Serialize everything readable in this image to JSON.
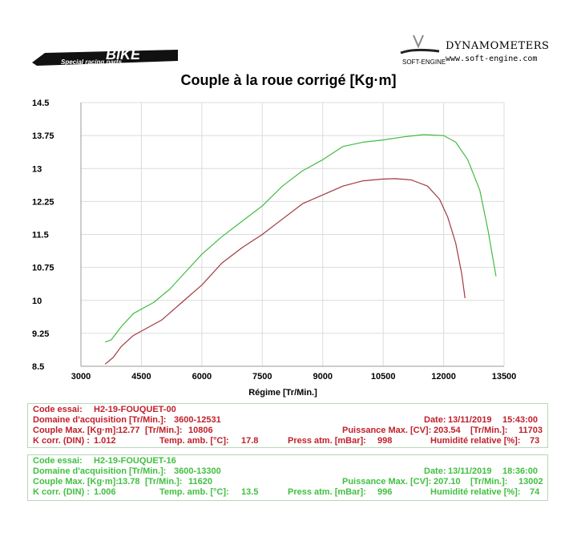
{
  "logos": {
    "left_text": "BIKE",
    "left_subtext": "Special racing parts",
    "right_brand": "DYNAMOMETERS",
    "right_mark": "SOFT-ENGINE",
    "right_url": "www.soft-engine.com"
  },
  "chart_data": {
    "type": "line",
    "title": "Couple à la roue corrigé [Kg·m]",
    "xlabel": "Régime [Tr/Min.]",
    "ylabel": "",
    "xlim": [
      3000,
      13500
    ],
    "ylim": [
      8.5,
      14.5
    ],
    "xticks": [
      "3000",
      "4500",
      "6000",
      "7500",
      "9000",
      "10500",
      "12000",
      "13500"
    ],
    "yticks": [
      "8.5",
      "9.25",
      "10",
      "10.75",
      "11.5",
      "12.25",
      "13",
      "13.75",
      "14.5"
    ],
    "grid": true,
    "series": [
      {
        "color": "#44bb44",
        "x": [
          3600,
          3750,
          4000,
          4300,
          4500,
          4800,
          5200,
          5600,
          6000,
          6500,
          7000,
          7500,
          8000,
          8500,
          9000,
          9500,
          10000,
          10500,
          11000,
          11500,
          12000,
          12300,
          12600,
          12900,
          13100,
          13300
        ],
        "y": [
          9.05,
          9.1,
          9.4,
          9.7,
          9.8,
          9.95,
          10.25,
          10.65,
          11.05,
          11.45,
          11.8,
          12.15,
          12.6,
          12.95,
          13.2,
          13.5,
          13.6,
          13.65,
          13.72,
          13.77,
          13.75,
          13.6,
          13.2,
          12.5,
          11.6,
          10.55
        ]
      },
      {
        "color": "#a03a40",
        "x": [
          3600,
          3800,
          4000,
          4300,
          4500,
          5000,
          5500,
          6000,
          6500,
          7000,
          7500,
          8000,
          8500,
          9000,
          9500,
          10000,
          10500,
          10800,
          11200,
          11600,
          11900,
          12100,
          12300,
          12450,
          12531
        ],
        "y": [
          8.55,
          8.7,
          8.95,
          9.2,
          9.3,
          9.55,
          9.95,
          10.35,
          10.85,
          11.2,
          11.5,
          11.85,
          12.2,
          12.4,
          12.6,
          12.72,
          12.76,
          12.77,
          12.74,
          12.6,
          12.3,
          11.9,
          11.3,
          10.6,
          10.05
        ]
      }
    ]
  },
  "runs": [
    {
      "code_label": "Code essai:",
      "code": "H2-19-FOUQUET-00",
      "domain_label": "Domaine d'acquisition [Tr/Min.]:",
      "domain": "3600-12531",
      "date_label": "Date:",
      "date": "13/11/2019",
      "time": "15:43:00",
      "torque_label": "Couple Max. [Kg·m]:",
      "torque": "12.77",
      "torque_rpm_label": "[Tr/Min.]:",
      "torque_rpm": "10806",
      "power_label": "Puissance Max. [CV]:",
      "power": "203.54",
      "power_rpm_label": "[Tr/Min.]:",
      "power_rpm": "11703",
      "kcorr_label": "K corr. (DIN) :",
      "kcorr": "1.012",
      "temp_label": "Temp. amb. [°C]:",
      "temp": "17.8",
      "press_label": "Press atm. [mBar]:",
      "press": "998",
      "hum_label": "Humidité relative [%]:",
      "hum": "73"
    },
    {
      "code_label": "Code essai:",
      "code": "H2-19-FOUQUET-16",
      "domain_label": "Domaine d'acquisition [Tr/Min.]:",
      "domain": "3600-13300",
      "date_label": "Date:",
      "date": "13/11/2019",
      "time": "18:36:00",
      "torque_label": "Couple Max. [Kg·m]:",
      "torque": "13.78",
      "torque_rpm_label": "[Tr/Min.]:",
      "torque_rpm": "11620",
      "power_label": "Puissance Max. [CV]:",
      "power": "207.10",
      "power_rpm_label": "[Tr/Min.]:",
      "power_rpm": "13002",
      "kcorr_label": "K corr. (DIN) :",
      "kcorr": "1.006",
      "temp_label": "Temp. amb. [°C]:",
      "temp": "13.5",
      "press_label": "Press atm. [mBar]:",
      "press": "996",
      "hum_label": "Humidité relative [%]:",
      "hum": "74"
    }
  ]
}
